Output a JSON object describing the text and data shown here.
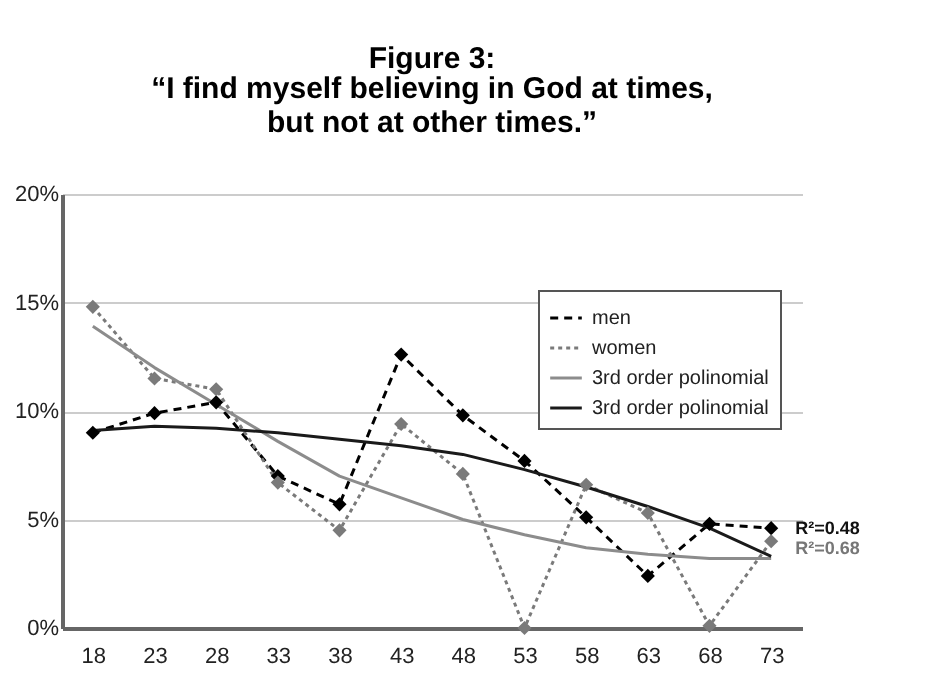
{
  "chart_data": {
    "type": "line",
    "title": "Figure 3:",
    "subtitle": "“I find myself believing in God at times, but not at other times.”",
    "categories": [
      "18",
      "23",
      "28",
      "33",
      "38",
      "43",
      "48",
      "53",
      "58",
      "63",
      "68",
      "73"
    ],
    "series": [
      {
        "name": "men",
        "color": "#000000",
        "marker": "diamond",
        "line_style": "dashed",
        "values": [
          9.0,
          9.9,
          10.4,
          7.0,
          5.7,
          12.6,
          9.8,
          7.7,
          5.1,
          2.4,
          4.8,
          4.6
        ]
      },
      {
        "name": "women",
        "color": "#7a7a7a",
        "marker": "diamond",
        "line_style": "dotted",
        "values": [
          14.8,
          11.5,
          11.0,
          6.7,
          4.5,
          9.4,
          7.1,
          0.0,
          6.6,
          5.3,
          0.1,
          4.0
        ]
      },
      {
        "name": "3rd order polinomial",
        "color": "#8c8c8c",
        "marker": "none",
        "line_style": "solid",
        "values": [
          13.9,
          12.0,
          10.3,
          8.6,
          7.0,
          6.0,
          5.0,
          4.3,
          3.7,
          3.4,
          3.2,
          3.2
        ]
      },
      {
        "name": "3rd order polinomial",
        "color": "#1a1a1a",
        "marker": "none",
        "line_style": "solid",
        "values": [
          9.1,
          9.3,
          9.2,
          9.0,
          8.7,
          8.4,
          8.0,
          7.3,
          6.5,
          5.6,
          4.6,
          3.3
        ]
      }
    ],
    "ylim": [
      0,
      20
    ],
    "yticks": [
      {
        "value": 0,
        "label": "0%"
      },
      {
        "value": 5,
        "label": "5%"
      },
      {
        "value": 10,
        "label": "10%"
      },
      {
        "value": 15,
        "label": "15%"
      },
      {
        "value": 20,
        "label": "20%"
      }
    ],
    "grid": "y",
    "legend": "top right",
    "annotations": [
      {
        "text": "R²=0.48",
        "x": "73",
        "y": 4.6
      },
      {
        "text": "R²=0.68",
        "x": "73",
        "y": 3.7
      }
    ]
  }
}
